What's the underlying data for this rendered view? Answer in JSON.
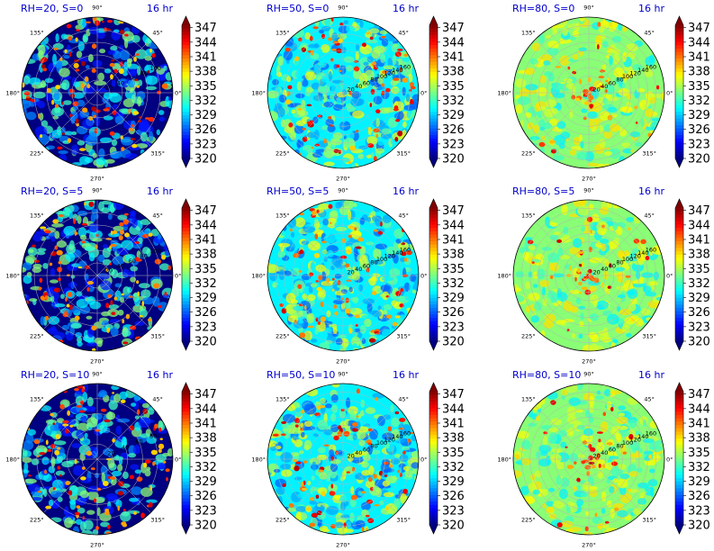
{
  "chart_data": [
    {
      "type": "heatmap",
      "projection": "polar",
      "title": "RH=20, S=0",
      "time_label": "16 hr",
      "rh": 20,
      "s": 0,
      "angular_ticks": [
        "90°",
        "45°",
        "0°",
        "315°",
        "270°",
        "225°",
        "180°",
        "135°"
      ],
      "radial_ticks": [
        "20",
        "40",
        "60",
        "80",
        "100"
      ],
      "colorbar": {
        "ticks": [
          "347",
          "344",
          "341",
          "338",
          "335",
          "332",
          "329",
          "326",
          "323",
          "320"
        ],
        "range": [
          320,
          347.5
        ],
        "colormap": "jet",
        "extend": "both"
      },
      "field": {
        "background": 320,
        "mean": 327,
        "blob_max": 347,
        "blob_density": "sparse"
      }
    },
    {
      "type": "heatmap",
      "projection": "polar",
      "title": "RH=50, S=0",
      "time_label": "16 hr",
      "rh": 50,
      "s": 0,
      "angular_ticks": [
        "90°",
        "45°",
        "0°",
        "315°",
        "270°",
        "225°",
        "180°",
        "135°"
      ],
      "radial_ticks": [
        "20",
        "40",
        "60",
        "80",
        "100",
        "120",
        "140",
        "160"
      ],
      "colorbar": {
        "ticks": [
          "347",
          "344",
          "341",
          "338",
          "335",
          "332",
          "329",
          "326",
          "323",
          "320"
        ],
        "range": [
          320,
          347.5
        ],
        "colormap": "jet",
        "extend": "both"
      },
      "field": {
        "background": 330,
        "mean": 332,
        "blob_max": 346,
        "blob_density": "medium"
      }
    },
    {
      "type": "heatmap",
      "projection": "polar",
      "title": "RH=80, S=0",
      "time_label": "16 hr",
      "rh": 80,
      "s": 0,
      "angular_ticks": [
        "90°",
        "45°",
        "0°",
        "315°",
        "270°",
        "225°",
        "180°",
        "135°"
      ],
      "radial_ticks": [
        "20",
        "40",
        "60",
        "80",
        "100",
        "120",
        "140",
        "160"
      ],
      "colorbar": {
        "ticks": [
          "347",
          "344",
          "341",
          "338",
          "335",
          "332",
          "329",
          "326",
          "323",
          "320"
        ],
        "range": [
          320,
          347.5
        ],
        "colormap": "jet",
        "extend": "both"
      },
      "field": {
        "background": 334,
        "mean": 335,
        "blob_max": 345,
        "blob_density": "dense"
      }
    },
    {
      "type": "heatmap",
      "projection": "polar",
      "title": "RH=20, S=5",
      "time_label": "16 hr",
      "rh": 20,
      "s": 5,
      "angular_ticks": [
        "90°",
        "45°",
        "0°",
        "315°",
        "270°",
        "225°",
        "180°",
        "135°"
      ],
      "radial_ticks": [
        "20",
        "40",
        "60",
        "80",
        "100"
      ],
      "colorbar": {
        "ticks": [
          "347",
          "344",
          "341",
          "338",
          "335",
          "332",
          "329",
          "326",
          "323",
          "320"
        ],
        "range": [
          320,
          347.5
        ],
        "colormap": "jet",
        "extend": "both"
      },
      "field": {
        "background": 320,
        "mean": 327,
        "blob_max": 346,
        "blob_density": "sparse"
      }
    },
    {
      "type": "heatmap",
      "projection": "polar",
      "title": "RH=50, S=5",
      "time_label": "16 hr",
      "rh": 50,
      "s": 5,
      "angular_ticks": [
        "90°",
        "45°",
        "0°",
        "315°",
        "270°",
        "225°",
        "180°",
        "135°"
      ],
      "radial_ticks": [
        "20",
        "40",
        "60",
        "80",
        "100",
        "120",
        "140",
        "160"
      ],
      "colorbar": {
        "ticks": [
          "347",
          "344",
          "341",
          "338",
          "335",
          "332",
          "329",
          "326",
          "323",
          "320"
        ],
        "range": [
          320,
          347.5
        ],
        "colormap": "jet",
        "extend": "both"
      },
      "field": {
        "background": 330,
        "mean": 332,
        "blob_max": 346,
        "blob_density": "medium"
      }
    },
    {
      "type": "heatmap",
      "projection": "polar",
      "title": "RH=80, S=5",
      "time_label": "16 hr",
      "rh": 80,
      "s": 5,
      "angular_ticks": [
        "90°",
        "45°",
        "0°",
        "315°",
        "270°",
        "225°",
        "180°",
        "135°"
      ],
      "radial_ticks": [
        "20",
        "40",
        "60",
        "80",
        "100",
        "120",
        "140",
        "160"
      ],
      "colorbar": {
        "ticks": [
          "347",
          "344",
          "341",
          "338",
          "335",
          "332",
          "329",
          "326",
          "323",
          "320"
        ],
        "range": [
          320,
          347.5
        ],
        "colormap": "jet",
        "extend": "both"
      },
      "field": {
        "background": 334,
        "mean": 335,
        "blob_max": 346,
        "blob_density": "dense"
      }
    },
    {
      "type": "heatmap",
      "projection": "polar",
      "title": "RH=20, S=10",
      "time_label": "16 hr",
      "rh": 20,
      "s": 10,
      "angular_ticks": [
        "90°",
        "45°",
        "0°",
        "315°",
        "270°",
        "225°",
        "180°",
        "135°"
      ],
      "radial_ticks": [
        "20",
        "40",
        "60",
        "80"
      ],
      "colorbar": {
        "ticks": [
          "347",
          "344",
          "341",
          "338",
          "335",
          "332",
          "329",
          "326",
          "323",
          "320"
        ],
        "range": [
          320,
          347.5
        ],
        "colormap": "jet",
        "extend": "both"
      },
      "field": {
        "background": 320,
        "mean": 327,
        "blob_max": 346,
        "blob_density": "sparse"
      }
    },
    {
      "type": "heatmap",
      "projection": "polar",
      "title": "RH=50, S=10",
      "time_label": "16 hr",
      "rh": 50,
      "s": 10,
      "angular_ticks": [
        "90°",
        "45°",
        "0°",
        "315°",
        "270°",
        "225°",
        "180°",
        "135°"
      ],
      "radial_ticks": [
        "20",
        "40",
        "60",
        "80",
        "100",
        "120",
        "140",
        "160"
      ],
      "colorbar": {
        "ticks": [
          "347",
          "344",
          "341",
          "338",
          "335",
          "332",
          "329",
          "326",
          "323",
          "320"
        ],
        "range": [
          320,
          347.5
        ],
        "colormap": "jet",
        "extend": "both"
      },
      "field": {
        "background": 330,
        "mean": 332,
        "blob_max": 346,
        "blob_density": "medium"
      }
    },
    {
      "type": "heatmap",
      "projection": "polar",
      "title": "RH=80, S=10",
      "time_label": "16 hr",
      "rh": 80,
      "s": 10,
      "angular_ticks": [
        "90°",
        "45°",
        "0°",
        "315°",
        "270°",
        "225°",
        "180°",
        "135°"
      ],
      "radial_ticks": [
        "20",
        "40",
        "60",
        "80",
        "100",
        "120",
        "140",
        "160"
      ],
      "colorbar": {
        "ticks": [
          "347",
          "344",
          "341",
          "338",
          "335",
          "332",
          "329",
          "326",
          "323",
          "320"
        ],
        "range": [
          320,
          347.5
        ],
        "colormap": "jet",
        "extend": "both"
      },
      "field": {
        "background": 334,
        "mean": 335,
        "blob_max": 346,
        "blob_density": "dense"
      }
    }
  ]
}
